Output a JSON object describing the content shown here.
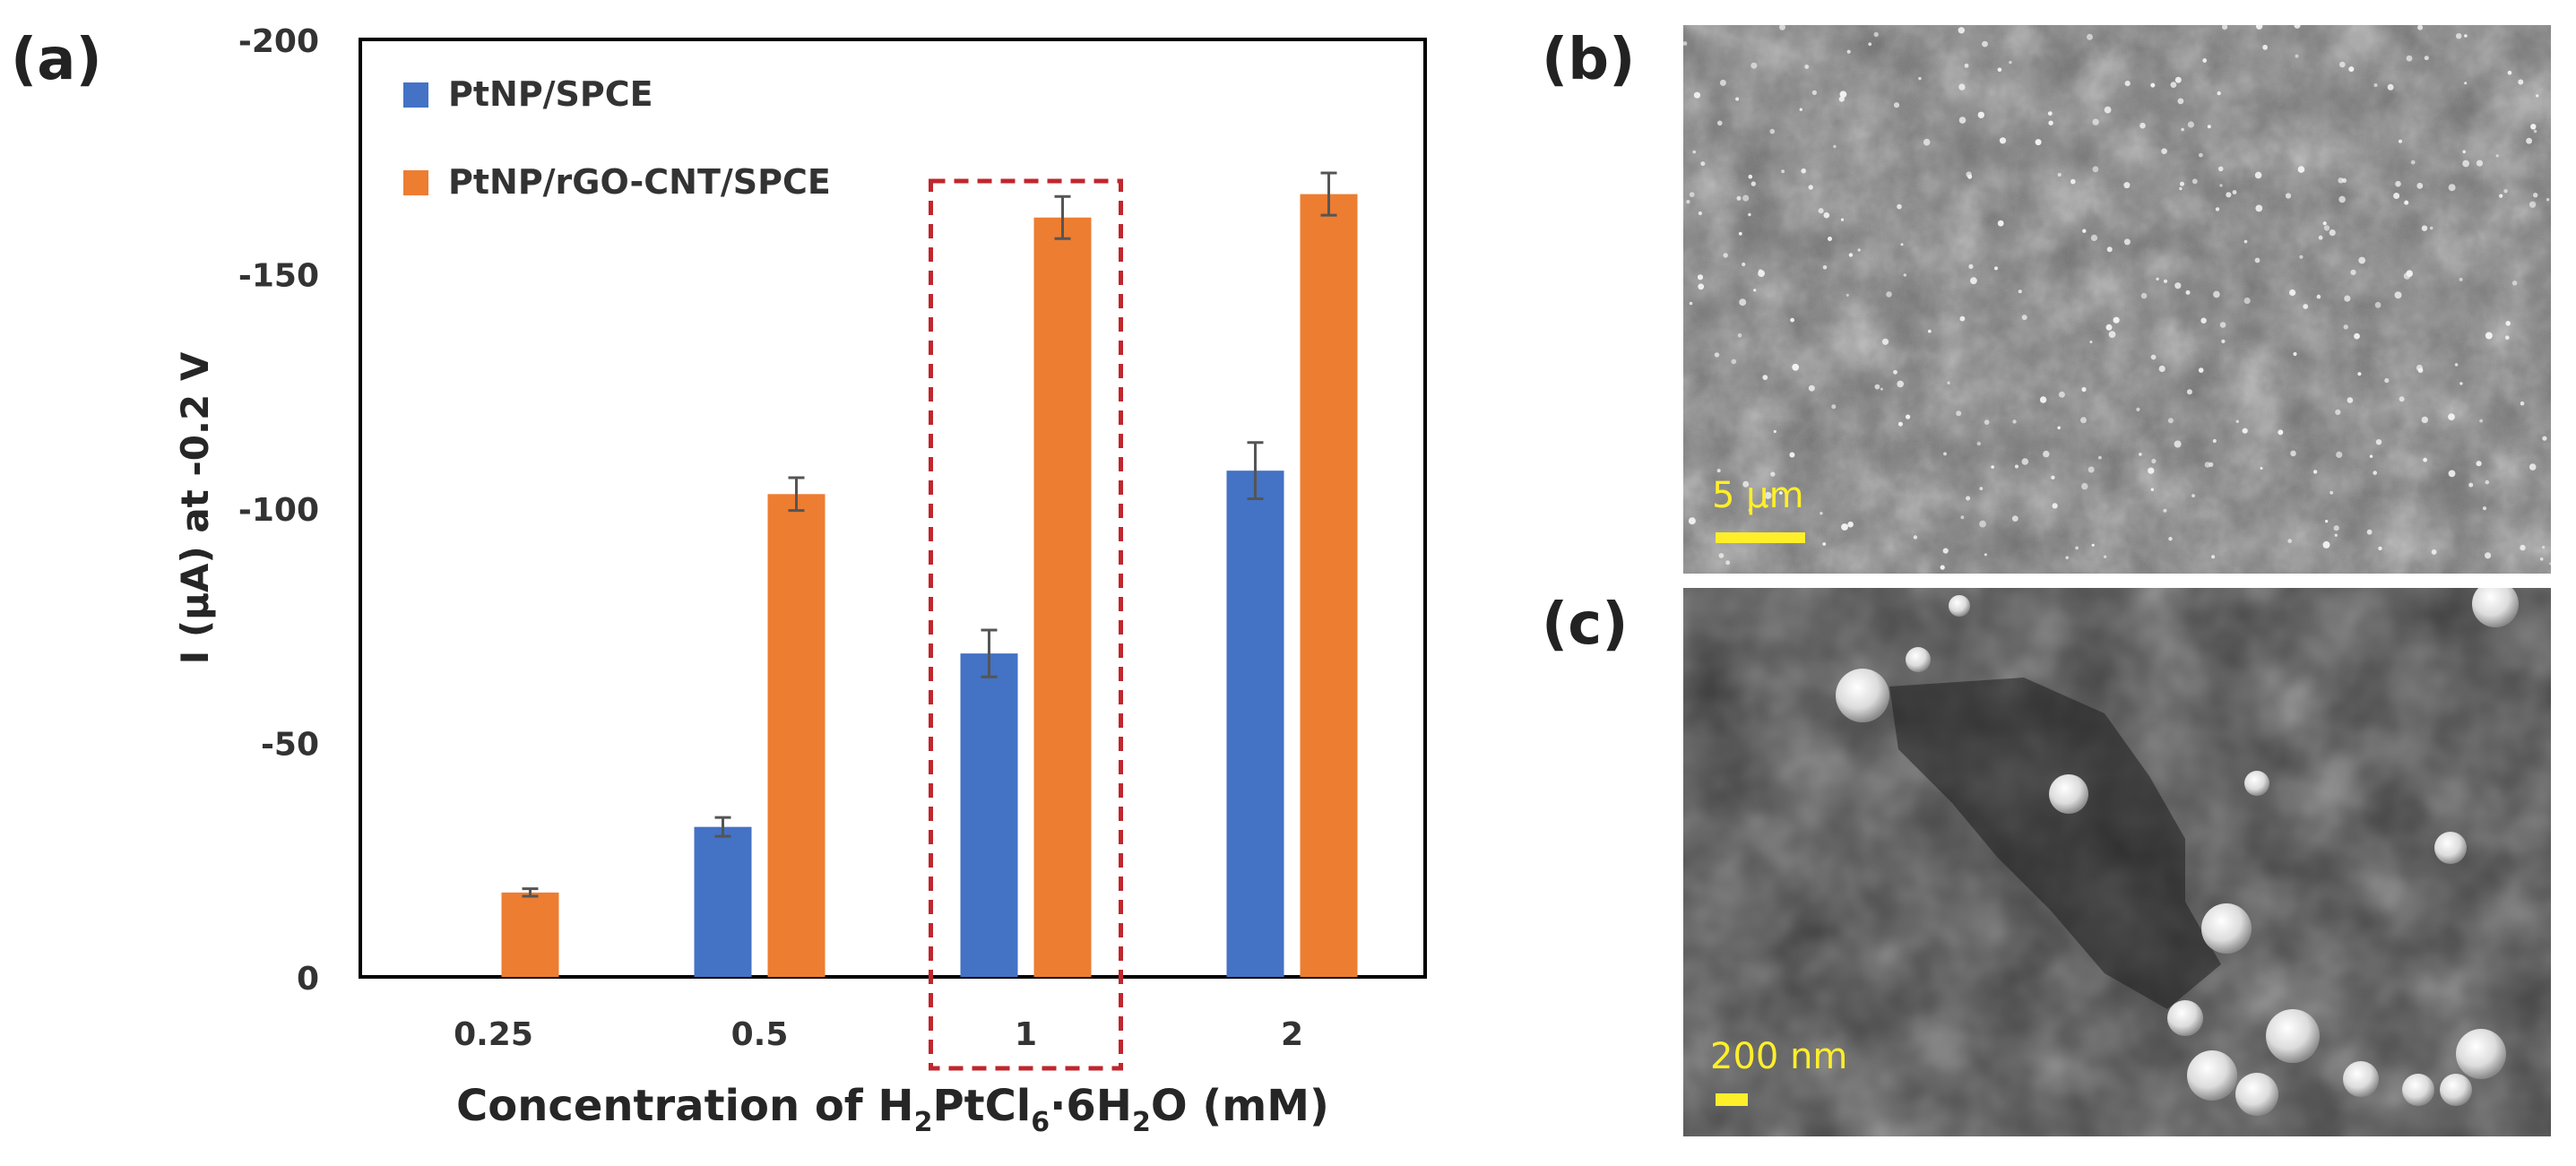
{
  "panels": {
    "a": "(a)",
    "b": "(b)",
    "c": "(c)"
  },
  "chart_data": {
    "type": "bar",
    "categories": [
      "0.25",
      "0.5",
      "1",
      "2"
    ],
    "series": [
      {
        "name": "PtNP/SPCE",
        "color": "#4472c4",
        "values": [
          0,
          -32,
          -69,
          -108
        ],
        "errors": [
          0,
          2,
          5,
          6
        ]
      },
      {
        "name": "PtNP/rGO-CNT/SPCE",
        "color": "#ed7d31",
        "values": [
          -18,
          -103,
          -162,
          -167
        ],
        "errors": [
          0.8,
          3.5,
          4.5,
          4.5
        ]
      }
    ],
    "ylabel": "I (µA) at -0.2 V",
    "xlabel": {
      "prefix": "Concentration of H",
      "sub1": "2",
      "mid1": "PtCl",
      "sub2": "6",
      "mid2": "·6H",
      "sub3": "2",
      "suffix": "O (mM)"
    },
    "ylim": [
      0,
      -200
    ],
    "yticks": [
      "-200",
      "-150",
      "-100",
      "-50",
      "0"
    ],
    "ytick_values": [
      -200,
      -150,
      -100,
      -50,
      0
    ],
    "highlight_category": "1",
    "highlight_color": "#c0262d"
  },
  "sem_b": {
    "scale_label": "5 µm"
  },
  "sem_c": {
    "scale_label": "200 nm"
  }
}
